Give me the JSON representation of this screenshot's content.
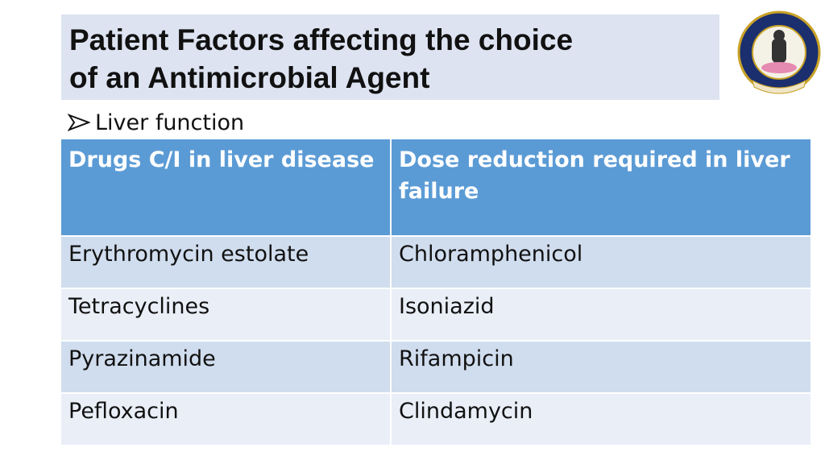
{
  "header": {
    "title_lines": [
      "Patient Factors affecting the choice",
      "of an Antimicrobial Agent"
    ]
  },
  "bullet": "Liver function",
  "table": {
    "columns": [
      "Drugs C/I in liver disease",
      "Dose reduction required in liver failure"
    ],
    "rows": [
      [
        "Erythromycin estolate",
        "Chloramphenicol"
      ],
      [
        "Tetracyclines",
        "Isoniazid"
      ],
      [
        "Pyrazinamide",
        "Rifampicin"
      ],
      [
        "Pefloxacin",
        "Clindamycin"
      ]
    ]
  }
}
